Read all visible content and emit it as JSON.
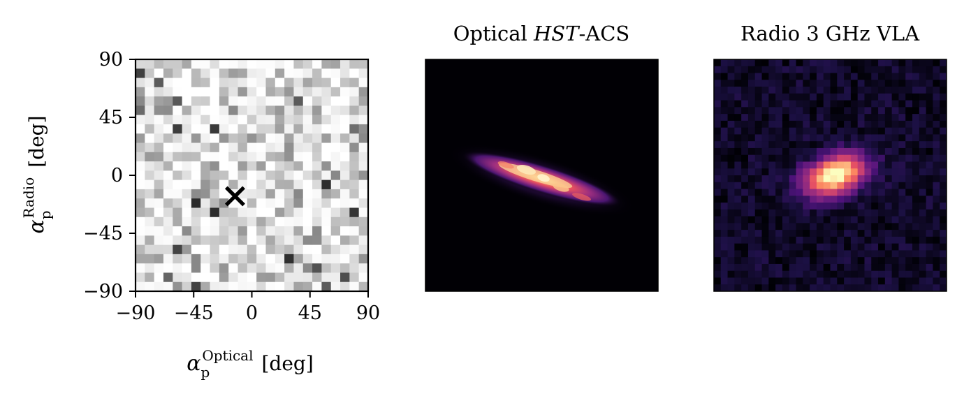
{
  "chart_data": [
    {
      "type": "heatmap",
      "xlabel": "α_p^Optical [deg]",
      "ylabel": "α_p^Radio [deg]",
      "xlim": [
        -90,
        90
      ],
      "ylim": [
        -90,
        90
      ],
      "xticks": [
        "−90",
        "−45",
        "0",
        "45",
        "90"
      ],
      "yticks": [
        "90",
        "45",
        "0",
        "−45",
        "−90"
      ],
      "colormap": "Greys",
      "bins": 25,
      "marker": {
        "symbol": "×",
        "x": -13,
        "y": -16
      }
    },
    {
      "type": "image",
      "title": "Optical HST-ACS",
      "colormap": "magma",
      "source_angle_deg": -17
    },
    {
      "type": "image",
      "title": "Radio 3 GHz VLA",
      "colormap": "magma",
      "source_angle_deg": -20
    }
  ]
}
